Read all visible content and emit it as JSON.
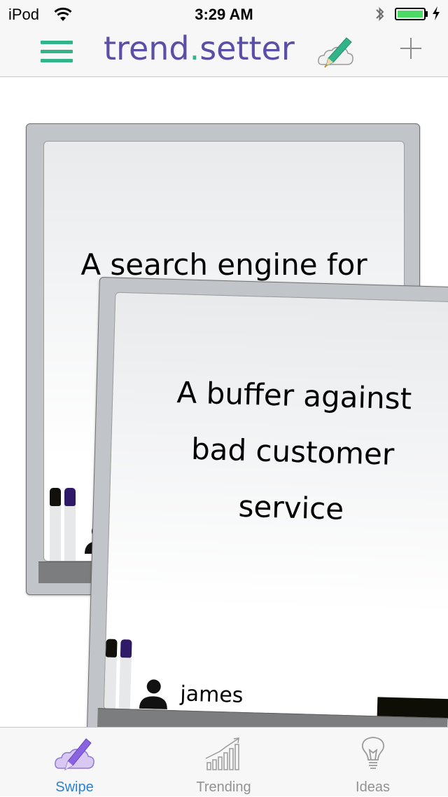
{
  "status_bar": {
    "carrier": "iPod",
    "time": "3:29 AM",
    "battery_level": 1.0
  },
  "nav": {
    "brand_part1": "trend",
    "brand_dot": ".",
    "brand_part2": "setter",
    "menu_icon": "hamburger-menu-icon",
    "add_icon": "plus-icon"
  },
  "cards": [
    {
      "text": "A search engine for"
    },
    {
      "lines": [
        "A buffer against",
        "bad customer",
        "service"
      ],
      "user": "james"
    }
  ],
  "tabs": [
    {
      "label": "Swipe",
      "icon": "pencil-cloud-icon",
      "active": true
    },
    {
      "label": "Trending",
      "icon": "trending-chart-icon",
      "active": false
    },
    {
      "label": "Ideas",
      "icon": "lightbulb-icon",
      "active": false
    }
  ],
  "colors": {
    "brand_purple": "#5a4ea6",
    "brand_green": "#33b38a",
    "tab_active": "#2a7fd6",
    "tab_inactive": "#929292"
  }
}
